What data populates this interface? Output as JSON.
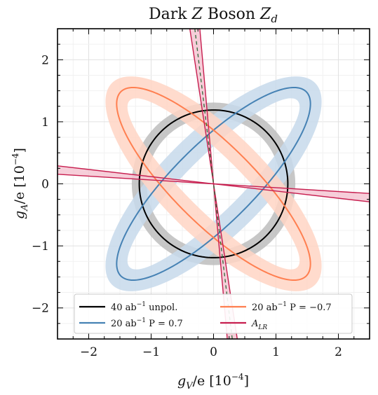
{
  "chart_data": {
    "type": "line",
    "title": "Dark Z Boson Z_d",
    "title_parts": {
      "pre": "Dark ",
      "z": "Z",
      "mid": " Boson ",
      "zd": "Z",
      "sub": "d"
    },
    "xlabel": "g_V/e [10^{-4}]",
    "xlabel_parts": {
      "g": "g",
      "sub": "V",
      "rest": "/e [10",
      "exp": "−4",
      "close": "]"
    },
    "ylabel": "g_A/e [10^{-4}]",
    "ylabel_parts": {
      "g": "g",
      "sub": "A",
      "rest": "/e [10",
      "exp": "−4",
      "close": "]"
    },
    "xlim": [
      -2.5,
      2.5
    ],
    "ylim": [
      -2.5,
      2.5
    ],
    "xticks": [
      -2,
      -1,
      0,
      1,
      2
    ],
    "yticks": [
      -2,
      -1,
      0,
      1,
      2
    ],
    "xtick_labels": [
      "−2",
      "−1",
      "0",
      "1",
      "2"
    ],
    "ytick_labels": [
      "−2",
      "−1",
      "0",
      "1",
      "2"
    ],
    "grid": true,
    "legend_position": "bottom-center",
    "series": [
      {
        "name": "40 ab^{-1} unpol.",
        "legend": {
          "main": "40 ab",
          "exp": "−1",
          "rest": " unpol."
        },
        "shape": "ellipse",
        "center": [
          0,
          0
        ],
        "semi_major": 1.19,
        "semi_minor": 1.19,
        "angle_deg": 0,
        "band_width": 0.12,
        "color": "#000000",
        "band_color": "#bdbdbd"
      },
      {
        "name": "20 ab^{-1} P = 0.7",
        "legend": {
          "main": "20 ab",
          "exp": "−1",
          "rest": " P = 0.7"
        },
        "shape": "ellipse",
        "center": [
          0,
          0
        ],
        "semi_major": 2.1,
        "semi_minor": 0.64,
        "angle_deg": 45,
        "band_width": 0.2,
        "color": "#4682b4",
        "band_color": "#c7d9eb"
      },
      {
        "name": "20 ab^{-1} P = −0.7",
        "legend": {
          "main": "20 ab",
          "exp": "−1",
          "rest": " P = −0.7"
        },
        "shape": "ellipse",
        "center": [
          0,
          0
        ],
        "semi_major": 2.1,
        "semi_minor": 0.64,
        "angle_deg": -45,
        "band_width": 0.2,
        "color": "#ff7f50",
        "band_color": "#ffd5c4"
      },
      {
        "name": "A_{LR}",
        "legend": {
          "main": "A",
          "sub": "LR"
        },
        "shape": "bands",
        "color": "#c71e4f",
        "band_color": "#f5c6d2",
        "steep_band": {
          "lines": [
            [
              [
                -0.38,
                2.5
              ],
              [
                0.38,
                -2.5
              ]
            ],
            [
              [
                -0.22,
                2.5
              ],
              [
                0.22,
                -2.5
              ]
            ]
          ],
          "dashed": [
            [
              -0.3,
              2.5
            ],
            [
              0.3,
              -2.5
            ]
          ],
          "dash_color": "#2e6b3a"
        },
        "flat_band": {
          "lines": [
            [
              [
                -2.5,
                0.29
              ],
              [
                2.5,
                -0.29
              ]
            ],
            [
              [
                -2.5,
                0.155
              ],
              [
                2.5,
                -0.155
              ]
            ]
          ]
        }
      }
    ]
  }
}
